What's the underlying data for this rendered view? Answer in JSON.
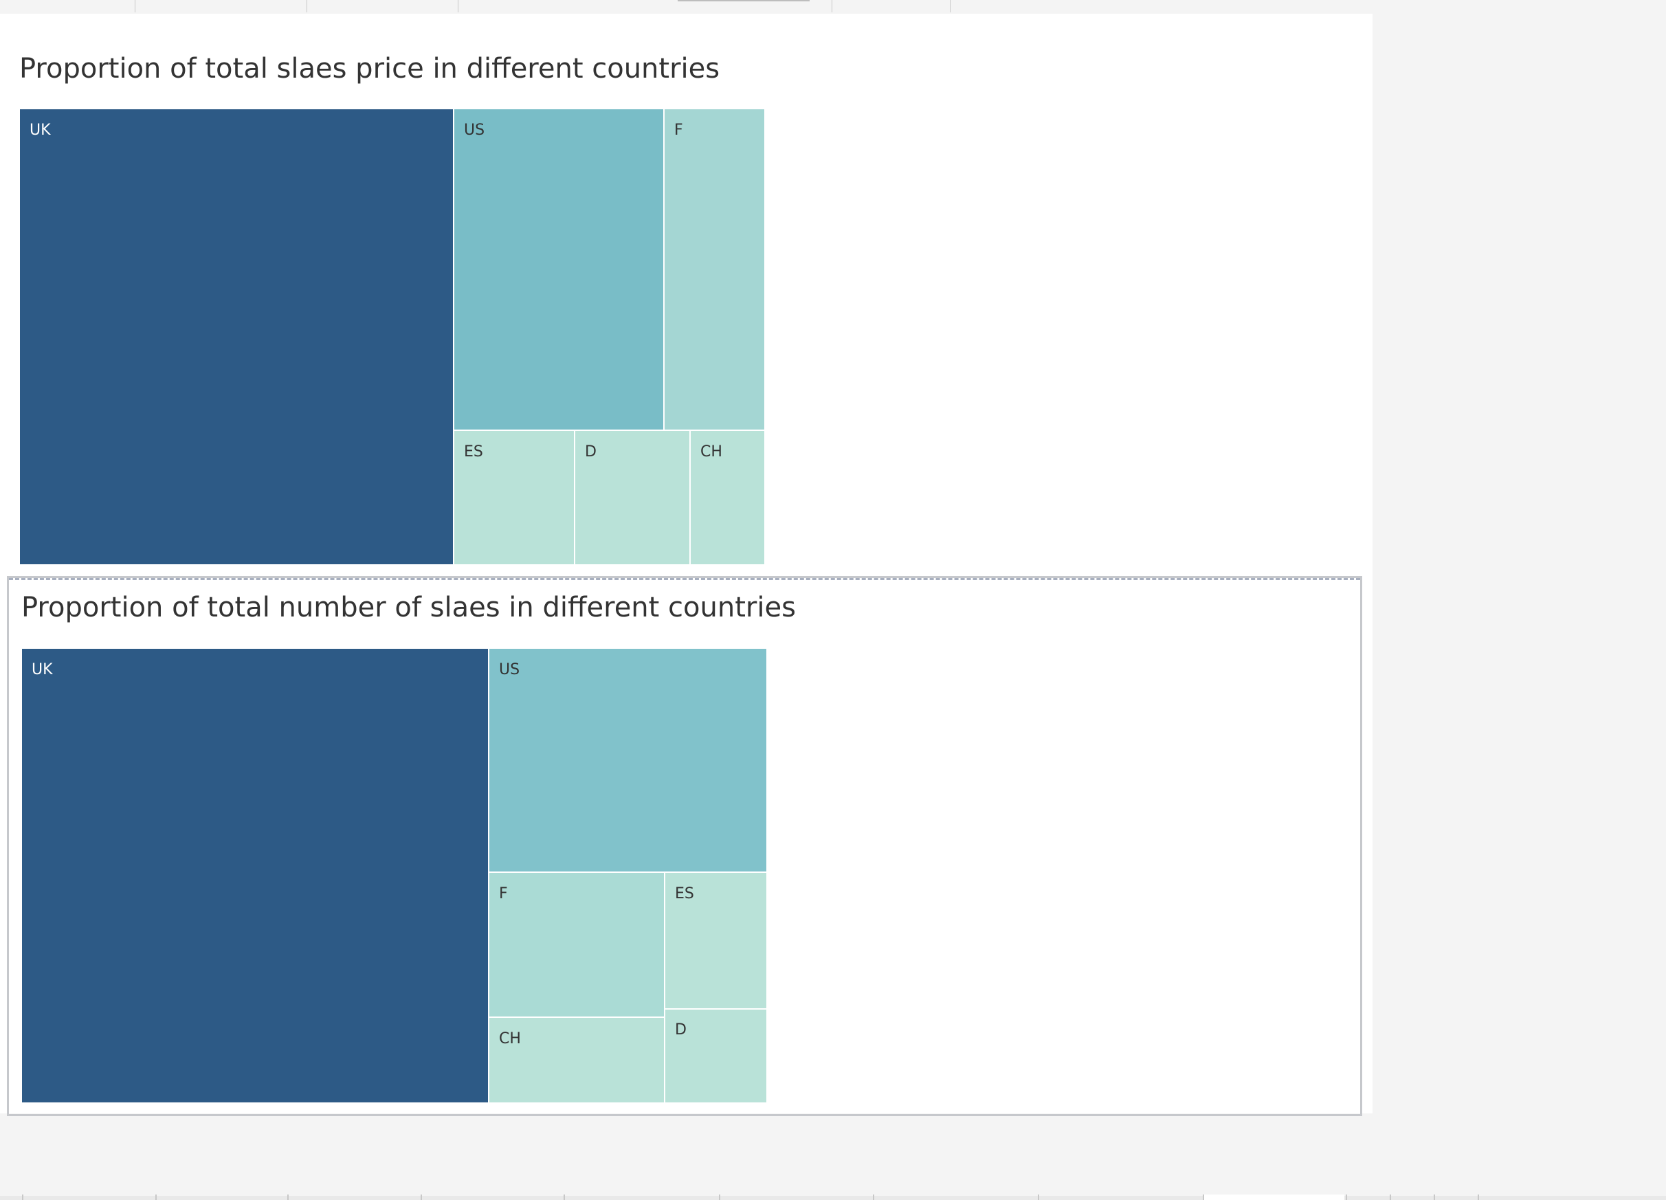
{
  "colors": {
    "uk": "#2d5a86",
    "us_price": "#79bdc7",
    "us_count": "#81c2cb",
    "f_price": "#a4d6d3",
    "f_count": "#aadbd5",
    "light": "#b9e2d8",
    "label_light": "#ffffff",
    "label_dark": "#333333"
  },
  "chart_data": [
    {
      "type": "treemap",
      "title": "Proportion of total slaes price in different countries",
      "items": [
        {
          "label": "UK",
          "share": 0.583,
          "color": "uk"
        },
        {
          "label": "US",
          "share": 0.199,
          "color": "us_price"
        },
        {
          "label": "F",
          "share": 0.095,
          "color": "f_price"
        },
        {
          "label": "ES",
          "share": 0.047,
          "color": "light"
        },
        {
          "label": "D",
          "share": 0.045,
          "color": "light"
        },
        {
          "label": "CH",
          "share": 0.029,
          "color": "light"
        }
      ]
    },
    {
      "type": "treemap",
      "title": "Proportion of total number of slaes in different countries",
      "items": [
        {
          "label": "UK",
          "share": 0.627,
          "color": "uk"
        },
        {
          "label": "US",
          "share": 0.183,
          "color": "us_count"
        },
        {
          "label": "F",
          "share": 0.075,
          "color": "f_count"
        },
        {
          "label": "ES",
          "share": 0.043,
          "color": "light"
        },
        {
          "label": "CH",
          "share": 0.045,
          "color": "light"
        },
        {
          "label": "D",
          "share": 0.03,
          "color": "light"
        }
      ]
    }
  ]
}
